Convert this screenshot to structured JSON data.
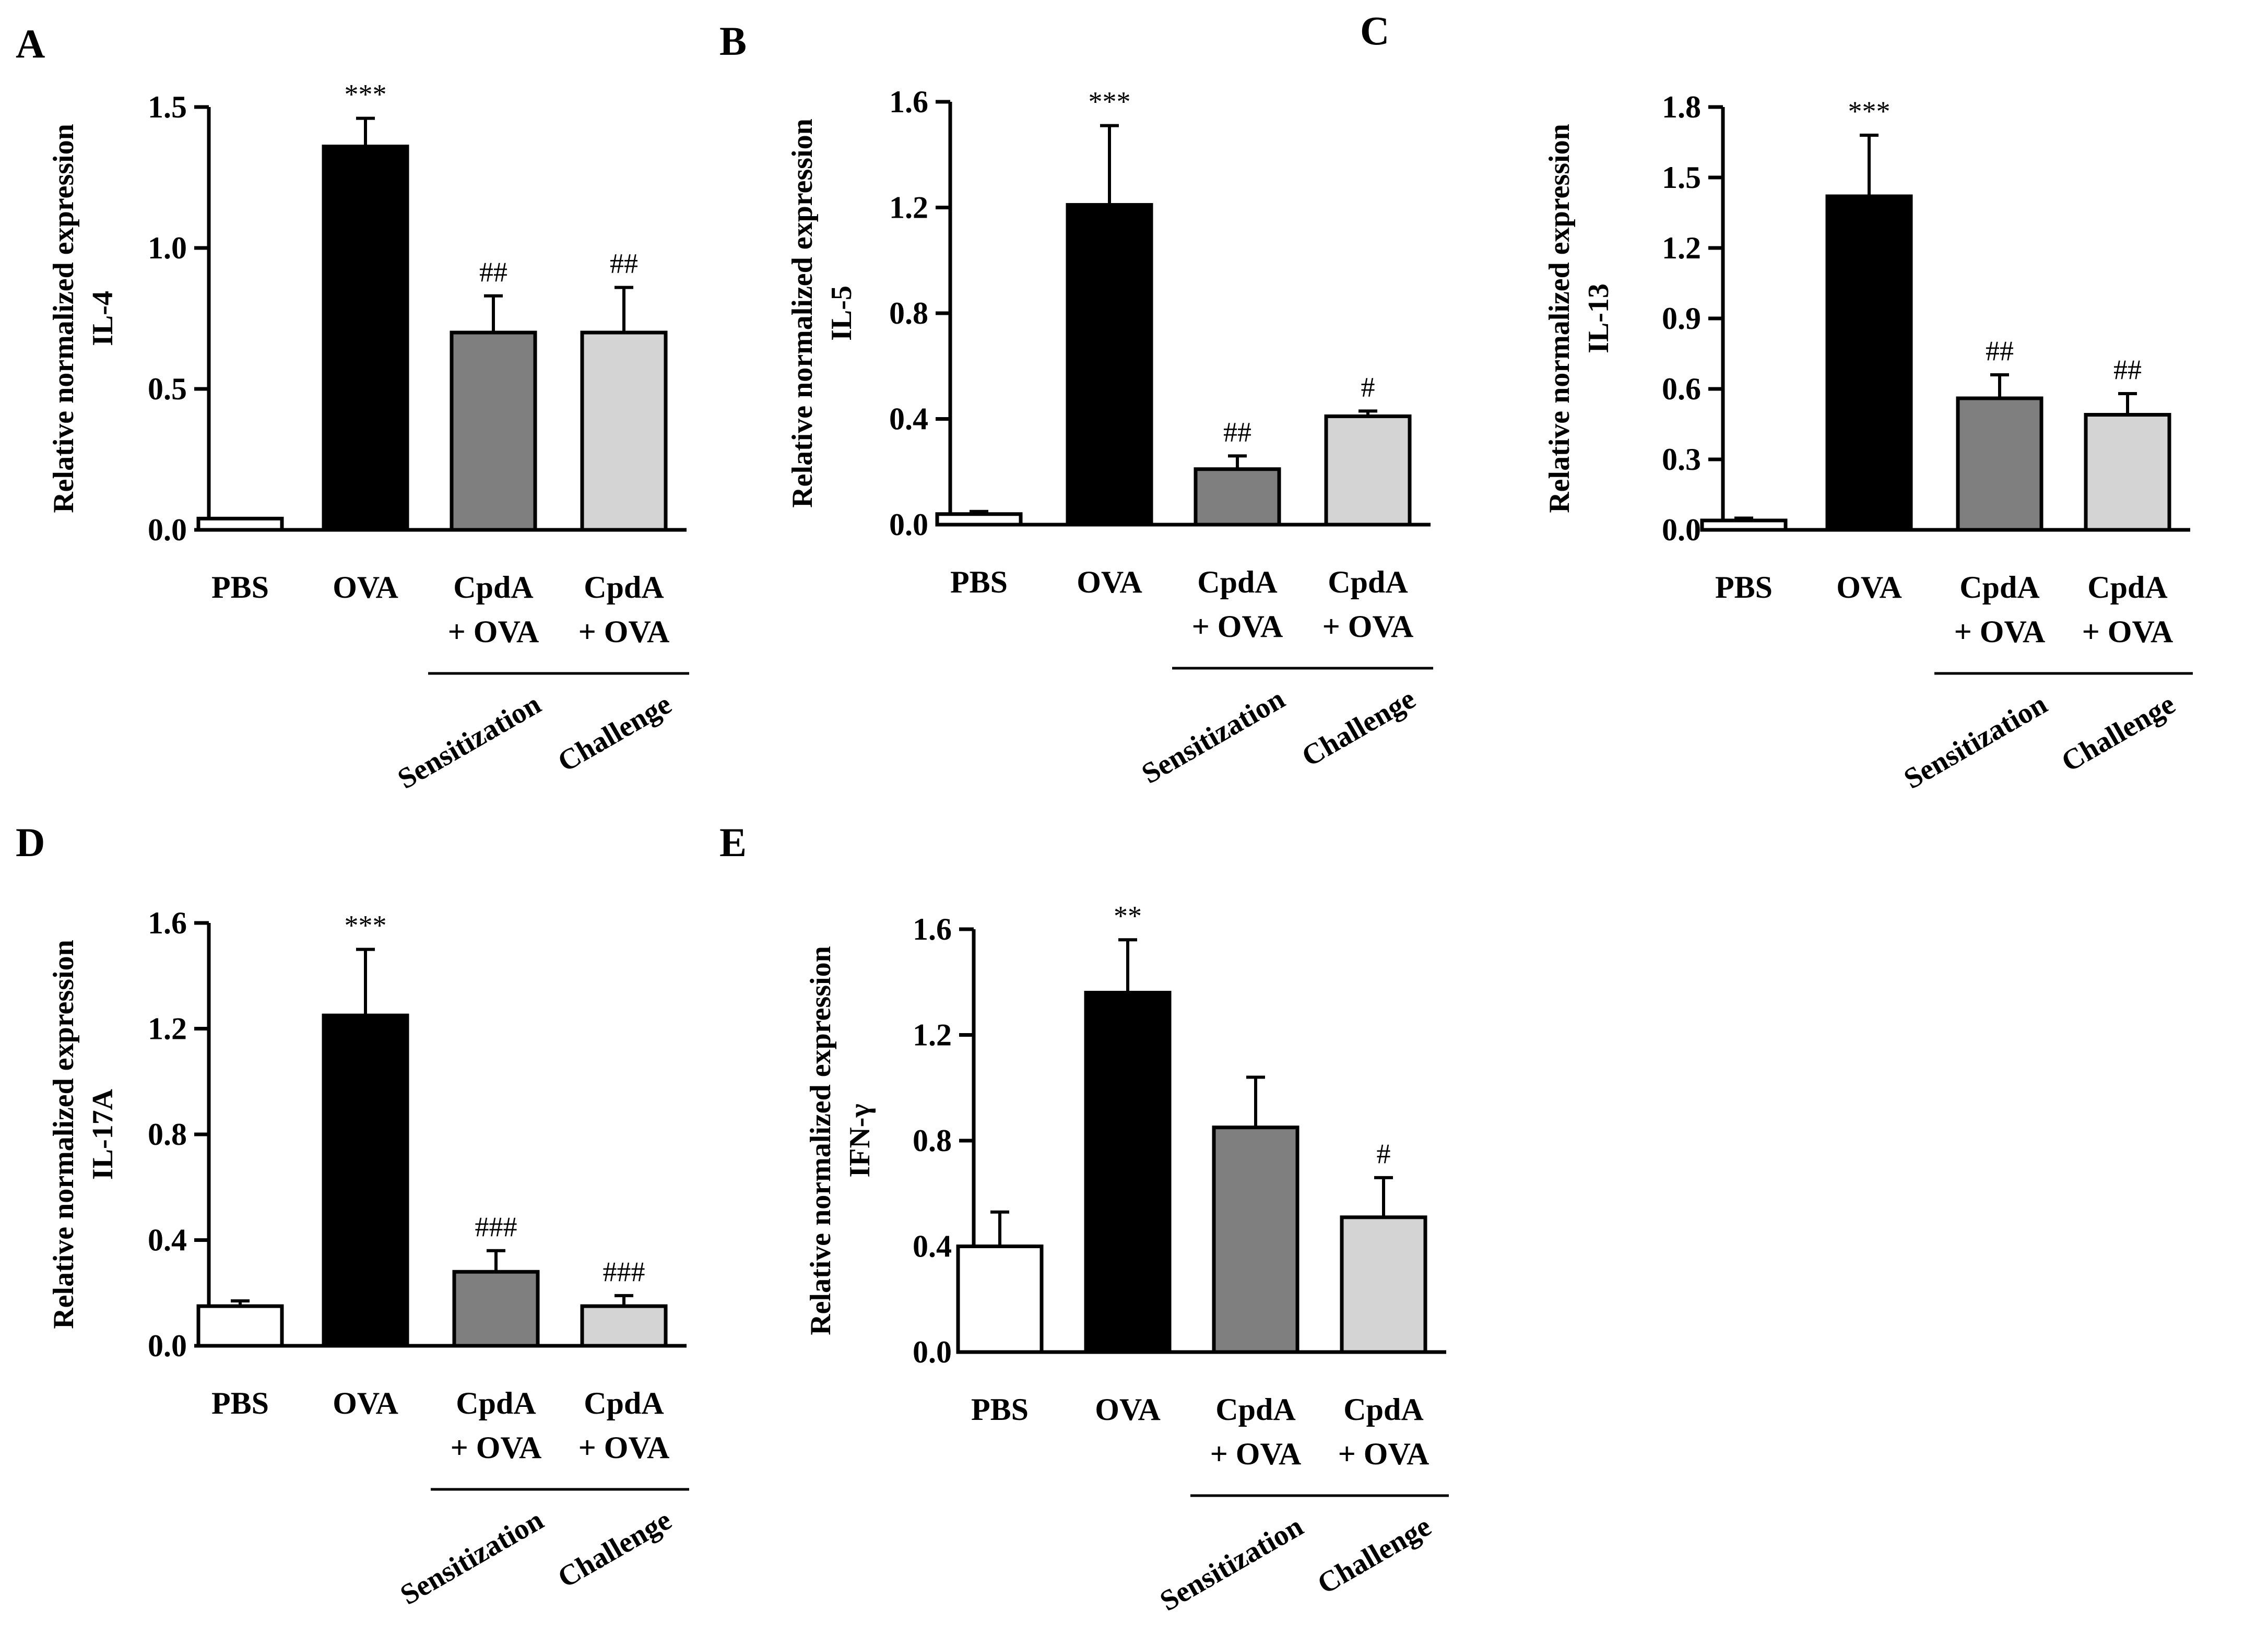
{
  "colors": {
    "PBS": "#ffffff",
    "OVA": "#000000",
    "CpdA_sens": "#7f7f7f",
    "CpdA_chal": "#d4d4d4"
  },
  "chart_data": [
    {
      "type": "bar",
      "panel": "A",
      "ylabel_line1": "Relative normalized expression",
      "ylabel_line2": "IL-4",
      "ylim": [
        0,
        1.5
      ],
      "yticks": [
        "0.0",
        "0.5",
        "1.0",
        "1.5"
      ],
      "categories": [
        {
          "line1": "PBS",
          "line2": "",
          "value": 0.04,
          "error": 0.0,
          "annotation": "",
          "color": "#ffffff"
        },
        {
          "line1": "OVA",
          "line2": "",
          "value": 1.36,
          "error": 0.1,
          "annotation": "***",
          "color": "#000000"
        },
        {
          "line1": "CpdA",
          "line2": "+ OVA",
          "value": 0.7,
          "error": 0.13,
          "annotation": "##",
          "color": "#7f7f7f"
        },
        {
          "line1": "CpdA",
          "line2": "+ OVA",
          "value": 0.7,
          "error": 0.16,
          "annotation": "##",
          "color": "#d4d4d4"
        }
      ],
      "groups": [
        "Sensitization",
        "Challenge"
      ]
    },
    {
      "type": "bar",
      "panel": "B",
      "ylabel_line1": "Relative normalized expression",
      "ylabel_line2": "IL-5",
      "ylim": [
        0,
        1.6
      ],
      "yticks": [
        "0.0",
        "0.4",
        "0.8",
        "1.2",
        "1.6"
      ],
      "categories": [
        {
          "line1": "PBS",
          "line2": "",
          "value": 0.04,
          "error": 0.01,
          "annotation": "",
          "color": "#ffffff"
        },
        {
          "line1": "OVA",
          "line2": "",
          "value": 1.21,
          "error": 0.3,
          "annotation": "***",
          "color": "#000000"
        },
        {
          "line1": "CpdA",
          "line2": "+ OVA",
          "value": 0.21,
          "error": 0.05,
          "annotation": "##",
          "color": "#7f7f7f"
        },
        {
          "line1": "CpdA",
          "line2": "+ OVA",
          "value": 0.41,
          "error": 0.02,
          "annotation": "#",
          "color": "#d4d4d4"
        }
      ],
      "groups": [
        "Sensitization",
        "Challenge"
      ]
    },
    {
      "type": "bar",
      "panel": "C",
      "ylabel_line1": "Relative normalized expression",
      "ylabel_line2": "IL-13",
      "ylim": [
        0,
        1.8
      ],
      "yticks": [
        "0.0",
        "0.3",
        "0.6",
        "0.9",
        "1.2",
        "1.5",
        "1.8"
      ],
      "categories": [
        {
          "line1": "PBS",
          "line2": "",
          "value": 0.04,
          "error": 0.01,
          "annotation": "",
          "color": "#ffffff"
        },
        {
          "line1": "OVA",
          "line2": "",
          "value": 1.42,
          "error": 0.26,
          "annotation": "***",
          "color": "#000000"
        },
        {
          "line1": "CpdA",
          "line2": "+ OVA",
          "value": 0.56,
          "error": 0.1,
          "annotation": "##",
          "color": "#7f7f7f"
        },
        {
          "line1": "CpdA",
          "line2": "+ OVA",
          "value": 0.49,
          "error": 0.09,
          "annotation": "##",
          "color": "#d4d4d4"
        }
      ],
      "groups": [
        "Sensitization",
        "Challenge"
      ]
    },
    {
      "type": "bar",
      "panel": "D",
      "ylabel_line1": "Relative normalized expression",
      "ylabel_line2": "IL-17A",
      "ylim": [
        0,
        1.6
      ],
      "yticks": [
        "0.0",
        "0.4",
        "0.8",
        "1.2",
        "1.6"
      ],
      "categories": [
        {
          "line1": "PBS",
          "line2": "",
          "value": 0.15,
          "error": 0.02,
          "annotation": "",
          "color": "#ffffff"
        },
        {
          "line1": "OVA",
          "line2": "",
          "value": 1.25,
          "error": 0.25,
          "annotation": "***",
          "color": "#000000"
        },
        {
          "line1": "CpdA",
          "line2": "+ OVA",
          "value": 0.28,
          "error": 0.08,
          "annotation": "###",
          "color": "#7f7f7f"
        },
        {
          "line1": "CpdA",
          "line2": "+ OVA",
          "value": 0.15,
          "error": 0.04,
          "annotation": "###",
          "color": "#d4d4d4"
        }
      ],
      "groups": [
        "Sensitization",
        "Challenge"
      ]
    },
    {
      "type": "bar",
      "panel": "E",
      "ylabel_line1": "Relative normalized expression",
      "ylabel_line2": "IFN-γ",
      "ylim": [
        0,
        1.6
      ],
      "yticks": [
        "0.0",
        "0.4",
        "0.8",
        "1.2",
        "1.6"
      ],
      "categories": [
        {
          "line1": "PBS",
          "line2": "",
          "value": 0.4,
          "error": 0.13,
          "annotation": "",
          "color": "#ffffff"
        },
        {
          "line1": "OVA",
          "line2": "",
          "value": 1.36,
          "error": 0.2,
          "annotation": "**",
          "color": "#000000"
        },
        {
          "line1": "CpdA",
          "line2": "+ OVA",
          "value": 0.85,
          "error": 0.19,
          "annotation": "",
          "color": "#7f7f7f"
        },
        {
          "line1": "CpdA",
          "line2": "+ OVA",
          "value": 0.51,
          "error": 0.15,
          "annotation": "#",
          "color": "#d4d4d4"
        }
      ],
      "groups": [
        "Sensitization",
        "Challenge"
      ]
    }
  ]
}
